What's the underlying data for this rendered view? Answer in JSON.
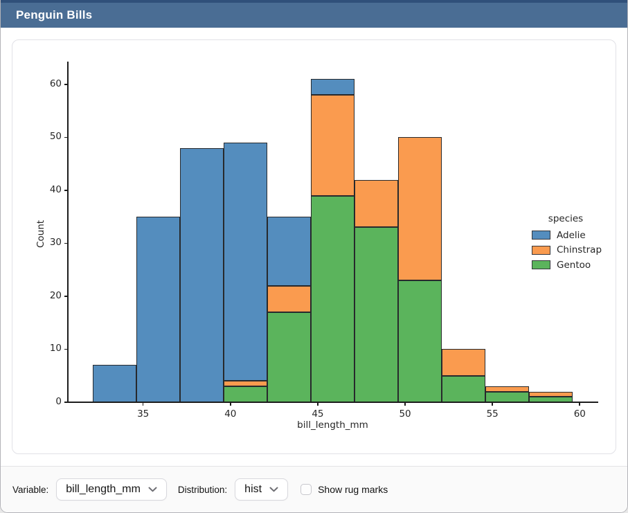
{
  "header": {
    "title": "Penguin Bills",
    "bg_color": "#4a6d94",
    "top_strip_color": "#30507a"
  },
  "chart_data": {
    "type": "bar",
    "subtype": "stacked-histogram",
    "title": "",
    "xlabel": "bill_length_mm",
    "ylabel": "Count",
    "xlim": [
      30.73,
      60.98
    ],
    "ylim": [
      0,
      64.3
    ],
    "xticks": [
      35,
      40,
      45,
      50,
      55,
      60
    ],
    "yticks": [
      0,
      10,
      20,
      30,
      40,
      50,
      60
    ],
    "bin_start": 32.1,
    "bin_width": 2.5,
    "bin_edges": [
      32.1,
      34.6,
      37.1,
      39.6,
      42.1,
      44.6,
      47.1,
      49.6,
      52.1,
      54.6,
      57.1,
      59.6
    ],
    "grid": false,
    "edge_color": "#27292c",
    "series": [
      {
        "name": "Gentoo",
        "color": "#5bb45c",
        "values": [
          0,
          0,
          0,
          3,
          17,
          39,
          33,
          23,
          5,
          2,
          1
        ]
      },
      {
        "name": "Chinstrap",
        "color": "#fa9b4f",
        "values": [
          0,
          0,
          0,
          1,
          5,
          19,
          9,
          27,
          5,
          1,
          1
        ]
      },
      {
        "name": "Adelie",
        "color": "#548dbe",
        "values": [
          7,
          35,
          48,
          45,
          13,
          3,
          0,
          0,
          0,
          0,
          0
        ]
      }
    ],
    "bin_totals": [
      7,
      35,
      48,
      49,
      35,
      61,
      42,
      50,
      10,
      3,
      2
    ],
    "legend_title": "species",
    "legend_order": [
      "Adelie",
      "Chinstrap",
      "Gentoo"
    ],
    "legend_position": "right-outside"
  },
  "controls": {
    "variable_label": "Variable:",
    "variable_value": "bill_length_mm",
    "distribution_label": "Distribution:",
    "distribution_value": "hist",
    "rug_label": "Show rug marks",
    "rug_checked": false
  }
}
